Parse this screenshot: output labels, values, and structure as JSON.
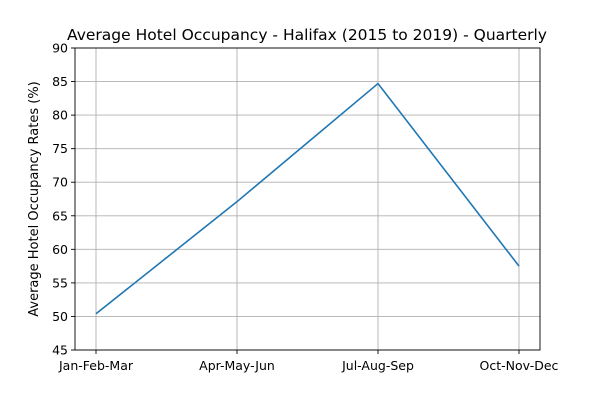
{
  "chart_data": {
    "type": "line",
    "title": "Average Hotel Occupancy - Halifax (2015 to 2019) - Quarterly",
    "xlabel": "",
    "ylabel": "Average Hotel Occupancy Rates (%)",
    "categories": [
      "Jan-Feb-Mar",
      "Apr-May-Jun",
      "Jul-Aug-Sep",
      "Oct-Nov-Dec"
    ],
    "series": [
      {
        "values": [
          50.4,
          67.1,
          84.7,
          57.5
        ],
        "color": "#1f77b4"
      }
    ],
    "ylim": [
      45,
      90
    ],
    "yticks": [
      45,
      50,
      55,
      60,
      65,
      70,
      75,
      80,
      85,
      90
    ],
    "grid": true,
    "legend": "none"
  }
}
